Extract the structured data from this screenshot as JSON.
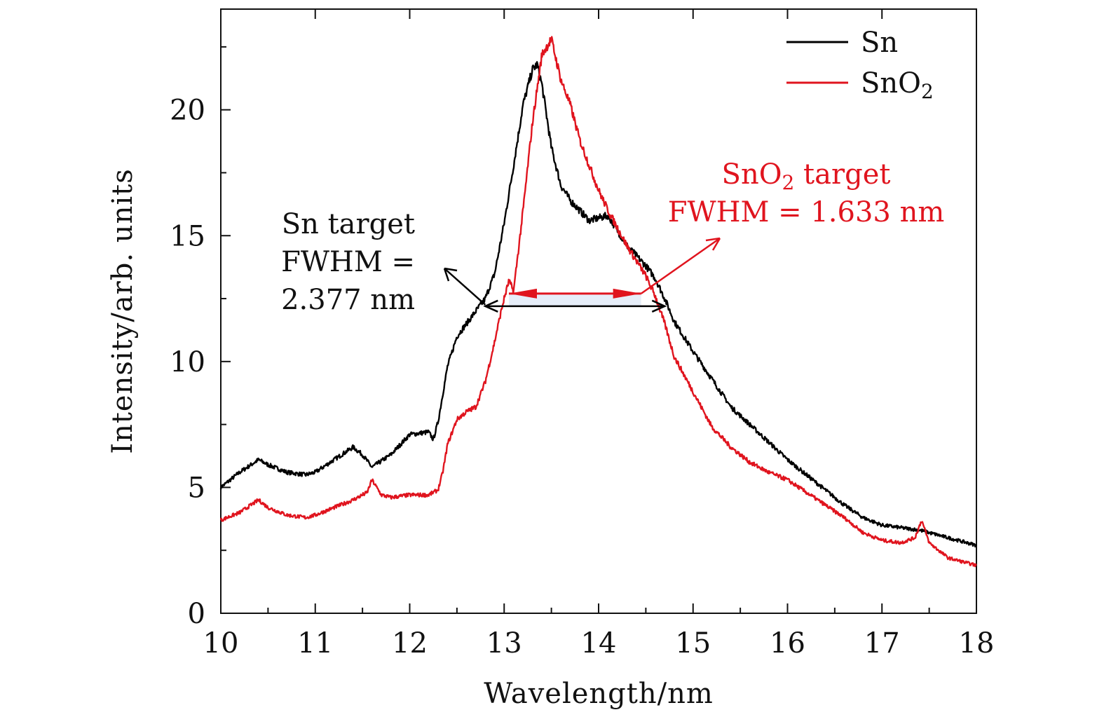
{
  "chart_data": {
    "type": "line",
    "title": "",
    "xlabel": "Wavelength/nm",
    "ylabel": "Intensity/arb. units",
    "xlim": [
      10,
      18
    ],
    "ylim": [
      0,
      24
    ],
    "xticks": [
      "10",
      "11",
      "12",
      "13",
      "14",
      "15",
      "16",
      "17",
      "18"
    ],
    "yticks": [
      "0",
      "5",
      "10",
      "15",
      "20"
    ],
    "legend_position": "top-right",
    "colors": {
      "Sn": "#000000",
      "SnO2": "#e0141e"
    },
    "series": [
      {
        "name": "Sn",
        "legend_label": "Sn",
        "color": "#000000",
        "x": [
          10.0,
          10.2,
          10.4,
          10.5,
          10.7,
          10.9,
          11.0,
          11.2,
          11.4,
          11.5,
          11.6,
          11.8,
          12.0,
          12.2,
          12.25,
          12.3,
          12.4,
          12.5,
          12.6,
          12.7,
          12.8,
          12.9,
          13.0,
          13.1,
          13.2,
          13.3,
          13.35,
          13.4,
          13.5,
          13.6,
          13.7,
          13.8,
          13.9,
          14.0,
          14.1,
          14.2,
          14.3,
          14.4,
          14.5,
          14.6,
          14.7,
          14.8,
          15.0,
          15.2,
          15.4,
          15.6,
          15.8,
          16.0,
          16.2,
          16.4,
          16.6,
          16.8,
          17.0,
          17.2,
          17.4,
          17.6,
          17.8,
          18.0
        ],
        "y": [
          5.0,
          5.6,
          6.1,
          5.9,
          5.6,
          5.5,
          5.6,
          6.1,
          6.6,
          6.3,
          5.8,
          6.3,
          7.1,
          7.2,
          6.9,
          7.6,
          9.8,
          11.0,
          11.5,
          12.0,
          12.5,
          13.5,
          15.5,
          17.8,
          20.2,
          21.6,
          21.8,
          21.0,
          18.5,
          17.0,
          16.4,
          16.0,
          15.6,
          15.7,
          15.8,
          15.2,
          14.6,
          14.2,
          13.8,
          13.3,
          12.5,
          11.6,
          10.4,
          9.3,
          8.2,
          7.5,
          6.8,
          6.1,
          5.5,
          4.9,
          4.3,
          3.8,
          3.5,
          3.4,
          3.3,
          3.1,
          2.9,
          2.7
        ]
      },
      {
        "name": "SnO2",
        "legend_label": "SnO2",
        "color": "#e0141e",
        "x": [
          10.0,
          10.2,
          10.4,
          10.5,
          10.7,
          10.9,
          11.0,
          11.2,
          11.4,
          11.55,
          11.6,
          11.7,
          11.8,
          12.0,
          12.2,
          12.3,
          12.35,
          12.4,
          12.5,
          12.6,
          12.7,
          12.8,
          12.9,
          12.95,
          13.0,
          13.05,
          13.1,
          13.2,
          13.3,
          13.4,
          13.5,
          13.6,
          13.7,
          13.8,
          13.9,
          14.0,
          14.1,
          14.2,
          14.3,
          14.4,
          14.5,
          14.6,
          14.7,
          14.8,
          15.0,
          15.2,
          15.4,
          15.6,
          15.8,
          16.0,
          16.2,
          16.4,
          16.6,
          16.8,
          17.0,
          17.2,
          17.35,
          17.42,
          17.5,
          17.7,
          18.0
        ],
        "y": [
          3.7,
          4.0,
          4.5,
          4.2,
          3.9,
          3.8,
          3.9,
          4.2,
          4.5,
          4.8,
          5.3,
          4.7,
          4.6,
          4.7,
          4.7,
          4.9,
          5.6,
          6.7,
          7.7,
          8.0,
          8.2,
          9.2,
          10.8,
          11.7,
          12.5,
          13.2,
          12.8,
          16.0,
          19.5,
          22.2,
          22.8,
          21.2,
          20.2,
          18.8,
          17.8,
          16.8,
          16.0,
          15.3,
          14.6,
          14.0,
          13.4,
          12.6,
          11.5,
          10.2,
          8.8,
          7.4,
          6.6,
          6.0,
          5.6,
          5.3,
          4.8,
          4.3,
          3.8,
          3.2,
          2.9,
          2.8,
          3.0,
          3.7,
          2.8,
          2.2,
          1.9
        ]
      }
    ],
    "annotations": [
      {
        "name": "sn-fwhm",
        "lines": [
          "Sn target",
          "FWHM =",
          "2.377 nm"
        ],
        "color": "#111111",
        "x_from": 12.8,
        "x_to": 14.7,
        "y": 12.2
      },
      {
        "name": "sno2-fwhm",
        "lines": [
          "SnO2 target",
          "FWHM = 1.633 nm"
        ],
        "color": "#e0141e",
        "x_from": 13.05,
        "x_to": 14.45,
        "y": 12.7
      }
    ]
  }
}
